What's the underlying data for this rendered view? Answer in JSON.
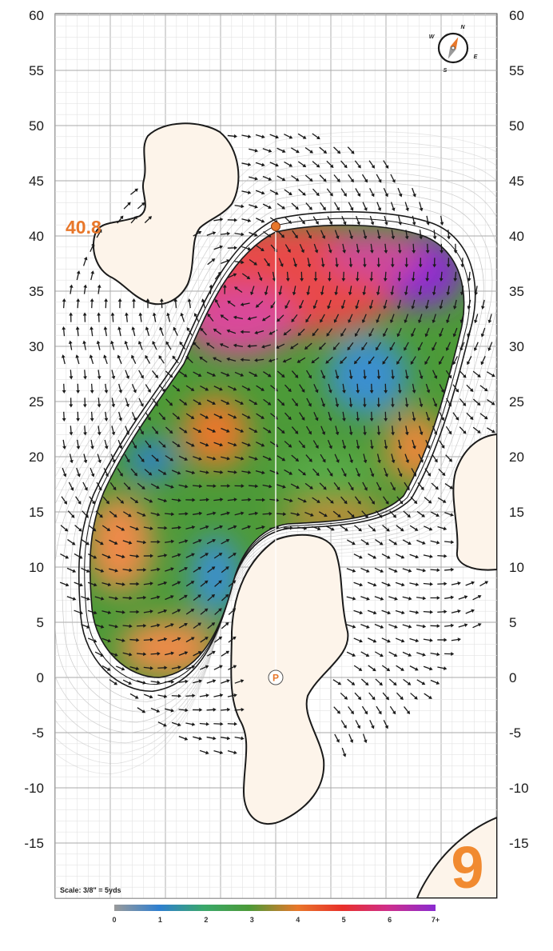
{
  "hole": {
    "number": "9",
    "green_length_yds": "40.8"
  },
  "scale": {
    "text": "Scale: 3/8\" = 5yds"
  },
  "axes": {
    "y_ticks": [
      "60",
      "55",
      "50",
      "45",
      "40",
      "35",
      "30",
      "25",
      "20",
      "15",
      "10",
      "5",
      "0",
      "-5",
      "-10",
      "-15"
    ]
  },
  "compass": {
    "n": "N",
    "e": "E",
    "s": "S",
    "w": "W"
  },
  "legend": {
    "ticks": [
      "0",
      "1",
      "2",
      "3",
      "4",
      "5",
      "6",
      "7+"
    ],
    "colors": [
      "#9a9a9a",
      "#2f7fd0",
      "#3aa86a",
      "#4c9a38",
      "#e8772a",
      "#e8302a",
      "#cf2e8a",
      "#8a2bd0"
    ]
  },
  "palette": {
    "sand": "#fdf4ea",
    "accent": "#e8772a",
    "grid": "#cfcfcf",
    "outline": "#1a1a1a"
  },
  "markers": {
    "pin": "P"
  }
}
